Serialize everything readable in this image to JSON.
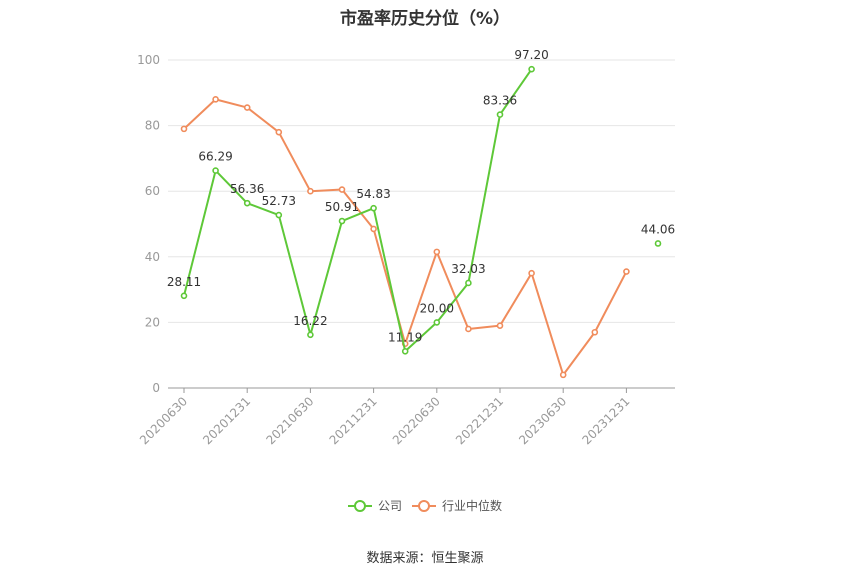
{
  "chart_data": {
    "type": "line",
    "title": "市盈率历史分位（%）",
    "x": [
      "20200630",
      "20200930",
      "20201231",
      "20210331",
      "20210630",
      "20210930",
      "20211231",
      "20220331",
      "20220630",
      "20220930",
      "20221231",
      "20230331",
      "20230630",
      "20230930",
      "20231231",
      "20240331"
    ],
    "x_tick_labels": [
      "20200630",
      "20201231",
      "20210630",
      "20211231",
      "20220630",
      "20221231",
      "20230630",
      "20231231"
    ],
    "ylim": [
      0,
      100
    ],
    "y_ticks": [
      0,
      20,
      40,
      60,
      80,
      100
    ],
    "grid": true,
    "legend_position": "bottom",
    "series": [
      {
        "name": "公司",
        "color": "#5ec838",
        "values": [
          28.11,
          66.29,
          56.36,
          52.73,
          16.22,
          50.91,
          54.83,
          11.19,
          20.0,
          32.03,
          83.36,
          97.2,
          null,
          null,
          null,
          44.06
        ],
        "labels": [
          "28.11",
          "66.29",
          "56.36",
          "52.73",
          "16.22",
          "50.91",
          "54.83",
          "11.19",
          "20.00",
          "32.03",
          "83.36",
          "97.20",
          "",
          "",
          "",
          "44.06"
        ]
      },
      {
        "name": "行业中位数",
        "color": "#f08c5c",
        "values": [
          79,
          88,
          85.5,
          78,
          60,
          60.5,
          48.5,
          13.5,
          41.5,
          18,
          19,
          35,
          4,
          17,
          35.5,
          null
        ]
      }
    ]
  },
  "source": "数据来源：恒生聚源"
}
